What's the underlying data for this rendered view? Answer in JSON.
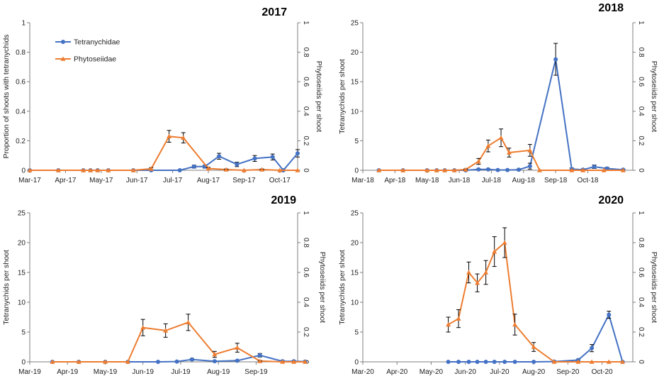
{
  "colors": {
    "tetranychidae": "#4472C4",
    "phytoseiidae": "#ED7D31",
    "axis": "#7f7f7f",
    "errorbar": "#000000"
  },
  "legend": {
    "items": [
      "Tetranychidae",
      "Phytoseiidae"
    ]
  },
  "chart_data": [
    {
      "type": "line",
      "title": "2017",
      "ylabel": "Proportion of shoots with tetranychids",
      "y2label": "Phytoseiids per shoot",
      "ylim": [
        0,
        1
      ],
      "yticks": [
        "0",
        "0.2",
        "0.4",
        "0.6",
        "0.8",
        "1"
      ],
      "y2lim": [
        0,
        1
      ],
      "y2ticks": [
        "0",
        "0.2",
        "0.4",
        "0.6",
        "0.8",
        "1"
      ],
      "xlim": [
        0,
        7.5
      ],
      "xticks": [
        "Mar-17",
        "Apr-17",
        "May-17",
        "Jun-17",
        "Jul-17",
        "Aug-17",
        "Sep-17",
        "Oct-17"
      ],
      "series": [
        {
          "name": "Tetranychidae",
          "axis": "left",
          "marker": "circle",
          "x": [
            0.0,
            0.8,
            1.5,
            1.7,
            1.9,
            2.2,
            2.9,
            3.4,
            4.2,
            4.6,
            4.9,
            5.3,
            5.8,
            6.3,
            6.8,
            7.1,
            7.5
          ],
          "y": [
            0,
            0,
            0,
            0,
            0,
            0,
            0,
            0,
            0,
            0.025,
            0.025,
            0.095,
            0.04,
            0.08,
            0.09,
            0,
            0.115
          ],
          "err": [
            0,
            0,
            0,
            0,
            0,
            0,
            0,
            0,
            0,
            0.01,
            0.01,
            0.02,
            0.015,
            0.02,
            0.02,
            0,
            0.025
          ]
        },
        {
          "name": "Phytoseiidae",
          "axis": "right",
          "marker": "triangle",
          "x": [
            0.0,
            0.8,
            1.5,
            1.7,
            1.9,
            2.2,
            2.9,
            3.4,
            3.9,
            4.3,
            5.0,
            5.5,
            6.0,
            6.5,
            7.0,
            7.5
          ],
          "y": [
            0,
            0,
            0,
            0,
            0,
            0,
            0,
            0.01,
            0.23,
            0.22,
            0.012,
            0.005,
            0,
            0.005,
            0,
            0
          ],
          "err": [
            0,
            0,
            0,
            0,
            0,
            0,
            0,
            0.008,
            0.04,
            0.035,
            0.008,
            0.004,
            0,
            0.004,
            0,
            0
          ]
        }
      ]
    },
    {
      "type": "line",
      "title": "2018",
      "ylabel": "Tetranychids per shoot",
      "y2label": "Phytoseiids per shoot",
      "ylim": [
        0,
        25
      ],
      "yticks": [
        "0",
        "5",
        "10",
        "15",
        "20",
        "25"
      ],
      "y2lim": [
        0,
        1
      ],
      "y2ticks": [
        "0",
        "0.2",
        "0.4",
        "0.6",
        "0.8",
        "1"
      ],
      "xlim": [
        0,
        8.4
      ],
      "xticks": [
        "Mar-18",
        "Apr-18",
        "May-18",
        "Jun-18",
        "Jul-18",
        "Aug-18",
        "Sep-18",
        "Oct-18"
      ],
      "series": [
        {
          "name": "Tetranychidae",
          "axis": "left",
          "marker": "circle",
          "x": [
            0.5,
            1.25,
            2.0,
            2.3,
            2.55,
            2.85,
            3.2,
            3.6,
            3.9,
            4.2,
            4.5,
            4.85,
            5.2,
            6.0,
            6.5,
            6.85,
            7.2,
            7.6,
            8.1
          ],
          "y": [
            0,
            0,
            0,
            0,
            0,
            0,
            0,
            0.15,
            0.15,
            0.05,
            0.05,
            0.1,
            0.7,
            18.8,
            0.2,
            0.1,
            0.6,
            0.3,
            0.1
          ],
          "err": [
            0,
            0,
            0,
            0,
            0,
            0,
            0,
            0.1,
            0.1,
            0.05,
            0.05,
            0.1,
            0.5,
            2.7,
            0.2,
            0.1,
            0.3,
            0.2,
            0.1
          ]
        },
        {
          "name": "Phytoseiidae",
          "axis": "right",
          "marker": "triangle",
          "x": [
            0.5,
            1.25,
            2.0,
            2.3,
            2.55,
            2.85,
            3.2,
            3.6,
            3.9,
            4.3,
            4.55,
            5.2,
            5.5,
            6.5,
            6.85,
            7.5,
            8.1
          ],
          "y": [
            0,
            0,
            0,
            0,
            0,
            0,
            0.005,
            0.06,
            0.165,
            0.22,
            0.12,
            0.135,
            0,
            0,
            0,
            0,
            0
          ],
          "err": [
            0,
            0,
            0,
            0,
            0,
            0,
            0.004,
            0.02,
            0.04,
            0.06,
            0.03,
            0.04,
            0,
            0,
            0,
            0,
            0
          ]
        }
      ]
    },
    {
      "type": "line",
      "title": "2019",
      "ylabel": "Tetranychids per shoot",
      "y2label": "Phytoseiids per shoot",
      "ylim": [
        0,
        25
      ],
      "yticks": [
        "0",
        "5",
        "10",
        "15",
        "20",
        "25"
      ],
      "y2lim": [
        0,
        1
      ],
      "y2ticks": [
        "0",
        "0.2",
        "0.4",
        "0.6",
        "0.8",
        "1"
      ],
      "xlim": [
        0,
        7.1
      ],
      "xticks": [
        "Mar-19",
        "Apr-19",
        "May-19",
        "Jun-19",
        "Jul-19",
        "Aug-19",
        "Sep-19"
      ],
      "series": [
        {
          "name": "Tetranychidae",
          "axis": "left",
          "marker": "circle",
          "x": [
            0.6,
            1.3,
            2.0,
            2.6,
            3.4,
            3.9,
            4.3,
            4.9,
            5.5,
            6.1,
            6.7,
            7.0,
            7.3
          ],
          "y": [
            0,
            0,
            0,
            0,
            0,
            0.05,
            0.4,
            0.1,
            0.2,
            1.1,
            0.1,
            0.1,
            0.05
          ],
          "err": [
            0,
            0,
            0,
            0,
            0,
            0.05,
            0.15,
            0.05,
            0.1,
            0.3,
            0.05,
            0.05,
            0.05
          ]
        },
        {
          "name": "Phytoseiidae",
          "axis": "right",
          "marker": "triangle",
          "x": [
            0.6,
            1.3,
            2.0,
            2.6,
            3.0,
            3.6,
            4.2,
            4.9,
            5.5,
            6.1,
            6.7,
            7.0,
            7.3
          ],
          "y": [
            0,
            0,
            0,
            0,
            0.23,
            0.21,
            0.265,
            0.05,
            0.095,
            0.005,
            0,
            0,
            0
          ],
          "err": [
            0,
            0,
            0,
            0,
            0.055,
            0.045,
            0.055,
            0.02,
            0.03,
            0.004,
            0,
            0,
            0
          ]
        }
      ]
    },
    {
      "type": "line",
      "title": "2020",
      "ylabel": "Tetranychids per shoot",
      "y2label": "Phytoseiids per shoot",
      "ylim": [
        0,
        25
      ],
      "yticks": [
        "0",
        "5",
        "10",
        "15",
        "20",
        "25"
      ],
      "y2lim": [
        0,
        1
      ],
      "y2ticks": [
        "0",
        "0.2",
        "0.4",
        "0.6",
        "0.8",
        "1"
      ],
      "xlim": [
        0,
        7.9
      ],
      "xticks": [
        "Mar-20",
        "Apr-20",
        "May-20",
        "Jun-20",
        "Jul-20",
        "Aug-20",
        "Sep-20",
        "Oct-20"
      ],
      "series": [
        {
          "name": "Tetranychidae",
          "axis": "left",
          "marker": "circle",
          "x": [
            2.5,
            2.8,
            3.1,
            3.35,
            3.6,
            3.85,
            4.15,
            4.45,
            5.0,
            5.6,
            6.3,
            6.7,
            7.2,
            7.6
          ],
          "y": [
            0,
            0,
            0,
            0,
            0,
            0,
            0,
            0,
            0,
            0.05,
            0.3,
            2.3,
            7.9,
            0
          ],
          "err": [
            0,
            0,
            0,
            0,
            0,
            0,
            0,
            0,
            0,
            0.05,
            0.15,
            0.6,
            0.6,
            0
          ]
        },
        {
          "name": "Phytoseiidae",
          "axis": "right",
          "marker": "triangle",
          "x": [
            2.5,
            2.8,
            3.1,
            3.35,
            3.6,
            3.85,
            4.15,
            4.45,
            5.0,
            5.6,
            6.3,
            6.7,
            7.2,
            7.6
          ],
          "y": [
            0.25,
            0.29,
            0.6,
            0.53,
            0.6,
            0.74,
            0.8,
            0.25,
            0.1,
            0,
            0,
            0,
            0,
            0
          ],
          "err": [
            0.05,
            0.06,
            0.07,
            0.06,
            0.08,
            0.1,
            0.1,
            0.07,
            0.03,
            0,
            0,
            0,
            0,
            0
          ]
        }
      ]
    }
  ]
}
